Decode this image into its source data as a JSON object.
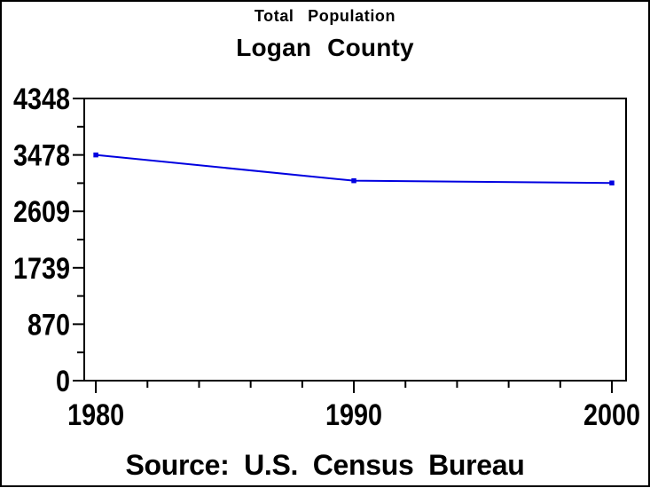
{
  "colors": {
    "background": "#ffffff",
    "border": "#000000",
    "axis": "#000000",
    "text": "#000000",
    "line": "#0000e0"
  },
  "chart_data": {
    "type": "line",
    "title": "Total Population",
    "subtitle": "Logan County",
    "footnote": "Source: U.S. Census Bureau",
    "x": [
      1980,
      1990,
      2000
    ],
    "x_tick_labels": [
      "1980",
      "1990",
      "2000"
    ],
    "series": [
      {
        "name": "Total Population",
        "values": [
          3478,
          3081,
          3046
        ]
      }
    ],
    "xlabel": "",
    "ylabel": "",
    "xlim": [
      1979.55,
      2000.55
    ],
    "ylim": [
      0,
      4348
    ],
    "y_major_ticks": [
      0,
      870,
      1739,
      2609,
      3478,
      4348
    ],
    "y_tick_labels": [
      "0",
      "870",
      "1739",
      "2609",
      "3478",
      "4348"
    ],
    "y_minor_ticks_between": 1,
    "x_minor_ticks_between": 4,
    "grid": false,
    "legend": "none",
    "marker": "square",
    "marker_color": "#0000e0",
    "frame": "box"
  }
}
